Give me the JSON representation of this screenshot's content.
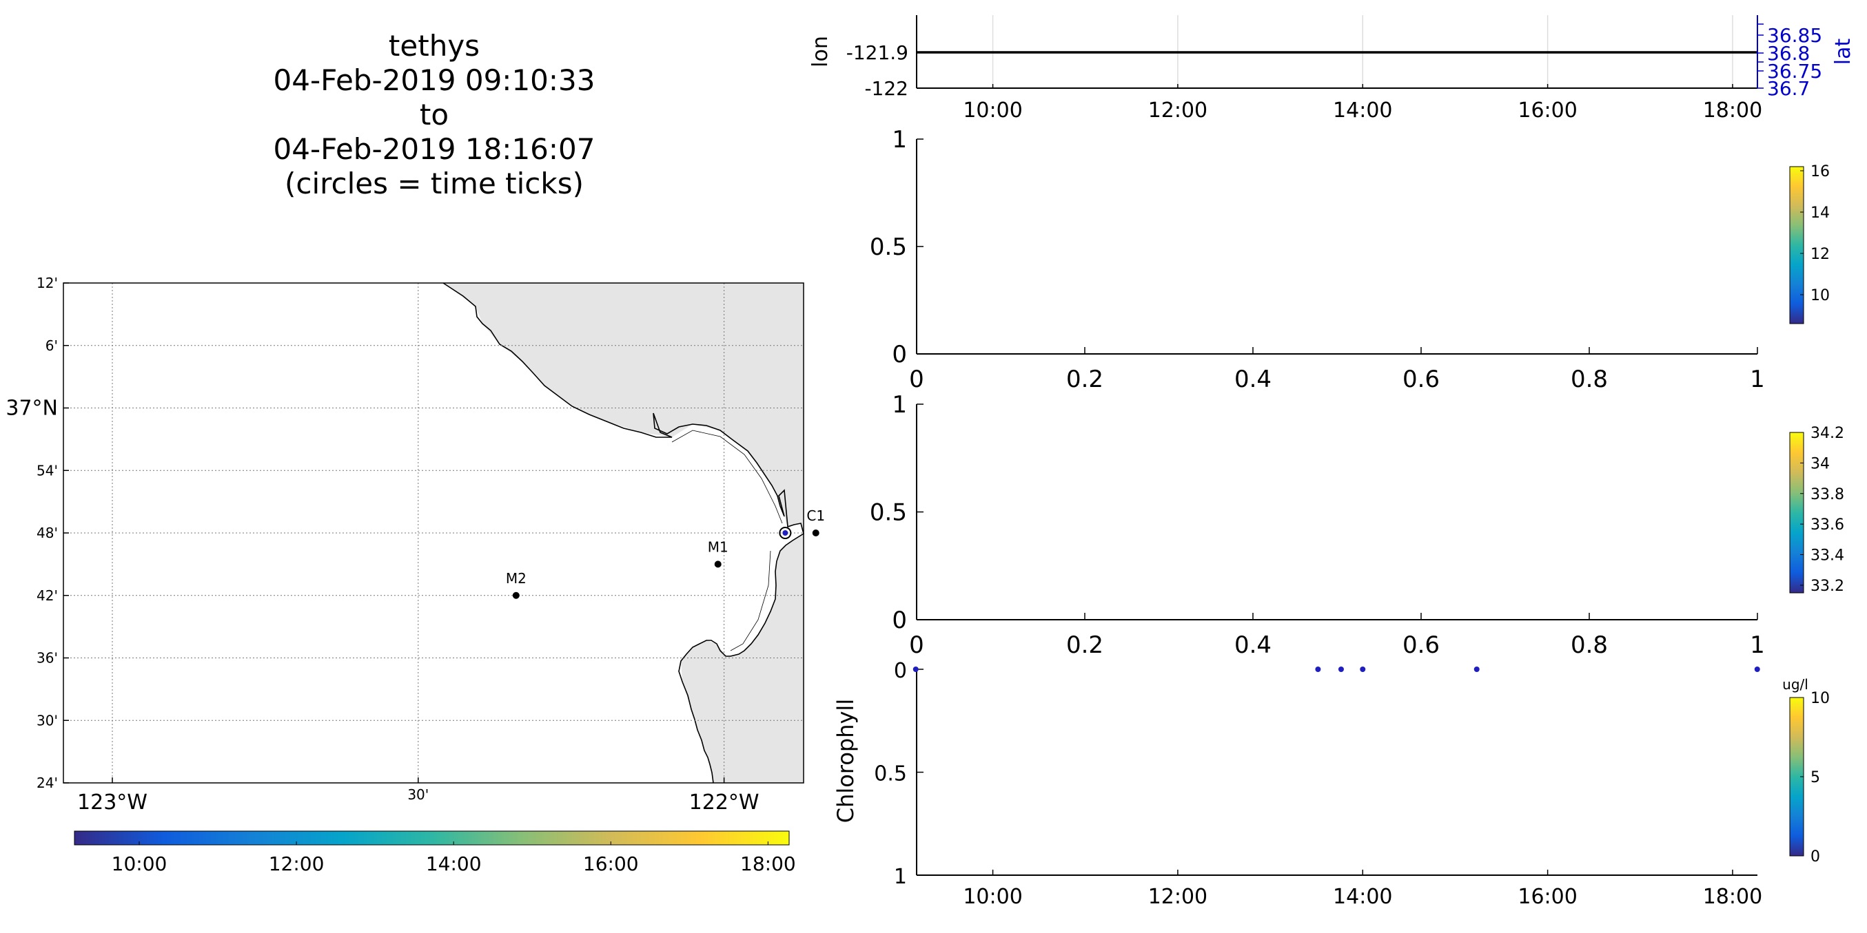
{
  "title": {
    "platform": "tethys",
    "start": "04-Feb-2019 09:10:33",
    "connector": "to",
    "end": "04-Feb-2019 18:16:07",
    "note": "(circles = time ticks)"
  },
  "colors": {
    "axis": "#000000",
    "land": "#e5e5e5",
    "grid": "#dddddd",
    "lat_axis": "#0000cc",
    "marker": "#1f1fbf",
    "parula": [
      "#352a87",
      "#0f5cdd",
      "#1481d6",
      "#06a4ca",
      "#2eb7a4",
      "#87bf77",
      "#d1bb59",
      "#fec832",
      "#f9fb0e"
    ]
  },
  "chart_data": [
    {
      "id": "track-map",
      "type": "map",
      "lat_tick_labels": [
        "12'",
        "6'",
        "37°N",
        "54'",
        "48'",
        "42'",
        "36'",
        "30'",
        "24'"
      ],
      "lon_tick_labels": [
        "123°W",
        "30'",
        "122°W"
      ],
      "lat_range": [
        36.4,
        37.2
      ],
      "lon_range": [
        -123.1,
        -121.87
      ],
      "stations": [
        {
          "name": "C1",
          "lon": -121.85,
          "lat": 36.8
        },
        {
          "name": "M1",
          "lon": -122.01,
          "lat": 36.75
        },
        {
          "name": "M2",
          "lon": -122.34,
          "lat": 36.7
        }
      ],
      "track_position": {
        "lon": -121.9,
        "lat": 36.8
      },
      "grid": true,
      "time_colorbar": {
        "ticks": [
          "10:00",
          "12:00",
          "14:00",
          "16:00",
          "18:00"
        ]
      }
    },
    {
      "id": "lon-lat-plot",
      "type": "line",
      "ylabel": "lon",
      "y_ticks": [
        "-121.9",
        "-122"
      ],
      "ylabel_right": "lat",
      "y_right_ticks": [
        "36.85",
        "36.8",
        "36.75",
        "36.7"
      ],
      "x_ticks": [
        "10:00",
        "12:00",
        "14:00",
        "16:00",
        "18:00"
      ],
      "series": [
        {
          "lon": -121.9,
          "x": [
            "09:10:33",
            "18:16:07"
          ]
        }
      ],
      "grid": true
    },
    {
      "id": "empty-plot-1",
      "type": "scatter",
      "x_ticks": [
        "0",
        "0.2",
        "0.4",
        "0.6",
        "0.8",
        "1"
      ],
      "y_ticks": [
        "1",
        "0.5",
        "0"
      ],
      "xlim": [
        0,
        1
      ],
      "ylim": [
        0,
        1
      ],
      "colorbar_ticks": [
        "16",
        "14",
        "12",
        "10"
      ],
      "colorbar_range": [
        8.6,
        16.2
      ]
    },
    {
      "id": "empty-plot-2",
      "type": "scatter",
      "x_ticks": [
        "0",
        "0.2",
        "0.4",
        "0.6",
        "0.8",
        "1"
      ],
      "y_ticks": [
        "1",
        "0.5",
        "0"
      ],
      "xlim": [
        0,
        1
      ],
      "ylim": [
        0,
        1
      ],
      "colorbar_ticks": [
        "34.2",
        "34",
        "33.8",
        "33.6",
        "33.4",
        "33.2"
      ],
      "colorbar_range": [
        33.15,
        34.2
      ]
    },
    {
      "id": "chlorophyll-plot",
      "type": "scatter",
      "ylabel": "Chlorophyll",
      "y_ticks": [
        "0",
        "0.5",
        "1"
      ],
      "ylim": [
        0,
        1
      ],
      "y_reversed": true,
      "x_ticks": [
        "10:00",
        "12:00",
        "14:00",
        "16:00",
        "18:00"
      ],
      "points": [
        {
          "time": "09:10",
          "depth": 0
        },
        {
          "time": "13:31",
          "depth": 0
        },
        {
          "time": "13:46",
          "depth": 0
        },
        {
          "time": "14:00",
          "depth": 0
        },
        {
          "time": "15:14",
          "depth": 0
        },
        {
          "time": "18:16",
          "depth": 0
        }
      ],
      "colorbar_unit": "ug/l",
      "colorbar_ticks": [
        "10",
        "5",
        "0"
      ],
      "colorbar_range": [
        0,
        10
      ]
    }
  ]
}
